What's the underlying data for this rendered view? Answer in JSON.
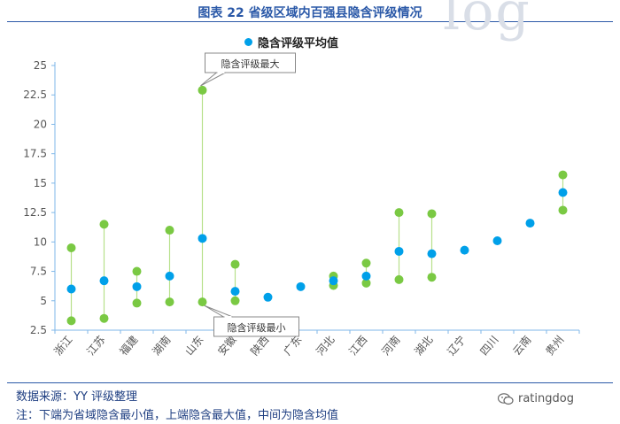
{
  "header": {
    "title": "图表 22 省级区域内百强县隐含评级情况"
  },
  "watermark": "log",
  "chart_data": {
    "type": "scatter",
    "title": "图表 22 省级区域内百强县隐含评级情况",
    "categories": [
      "浙江",
      "江苏",
      "福建",
      "湖南",
      "山东",
      "安徽",
      "陕西",
      "广东",
      "河北",
      "江西",
      "河南",
      "湖北",
      "辽宁",
      "四川",
      "云南",
      "贵州"
    ],
    "series": [
      {
        "name": "隐含评级平均值",
        "values": [
          6.0,
          6.7,
          6.2,
          7.1,
          10.3,
          5.8,
          5.3,
          6.2,
          6.7,
          7.1,
          9.2,
          9.0,
          9.3,
          10.1,
          11.6,
          14.2
        ]
      },
      {
        "values": [
          9.5,
          11.5,
          7.5,
          11.0,
          22.9,
          8.1,
          null,
          null,
          7.1,
          8.2,
          12.5,
          12.4,
          null,
          null,
          null,
          15.7
        ]
      },
      {
        "values": [
          3.3,
          3.5,
          4.8,
          4.9,
          4.9,
          5.0,
          null,
          null,
          6.3,
          6.5,
          6.8,
          7.0,
          null,
          null,
          null,
          12.7
        ]
      }
    ],
    "ylim": [
      2.5,
      25
    ],
    "yticks": [
      "2.5",
      "5",
      "7.5",
      "10",
      "12.5",
      "15",
      "17.5",
      "20",
      "22.5",
      "25"
    ],
    "annotations": [
      {
        "text": "隐含评级最大",
        "category": "山东"
      },
      {
        "text": "隐含评级最小",
        "category": "山东"
      }
    ],
    "legend_position": "top-center",
    "grid": false,
    "colors": {
      "mean": "#00a0e9",
      "range": "#7ac943",
      "connector": "#b7e08a",
      "axis": "#7fb7e8"
    }
  },
  "footer": {
    "source": "数据来源：YY 评级整理",
    "note": "注：下端为省域隐含最小值，上端隐含最大值，中间为隐含均值",
    "brand": "ratingdog"
  }
}
